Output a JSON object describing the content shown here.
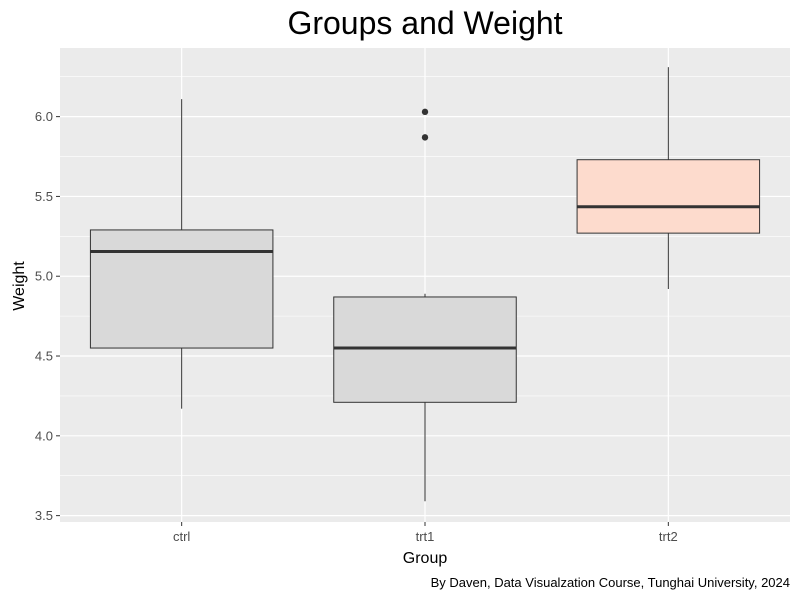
{
  "chart_data": {
    "type": "box",
    "title": "Groups and Weight",
    "xlabel": "Group",
    "ylabel": "Weight",
    "caption": "By Daven, Data Visualzation Course, Tunghai University, 2024",
    "categories": [
      "ctrl",
      "trt1",
      "trt2"
    ],
    "ylim": [
      3.46,
      6.43
    ],
    "yticks": [
      3.5,
      4.0,
      4.5,
      5.0,
      5.5,
      6.0
    ],
    "ytick_labels": [
      "3.5",
      "4.0",
      "4.5",
      "5.0",
      "5.5",
      "6.0"
    ],
    "grid": true,
    "legend": "none",
    "boxes": [
      {
        "category": "ctrl",
        "whisker_low": 4.17,
        "q1": 4.55,
        "median": 5.155,
        "q3": 5.29,
        "whisker_high": 6.11,
        "outliers": [],
        "fill": "#d9d9d9"
      },
      {
        "category": "trt1",
        "whisker_low": 3.59,
        "q1": 4.21,
        "median": 4.55,
        "q3": 4.87,
        "whisker_high": 4.89,
        "outliers": [
          5.87,
          6.03
        ],
        "fill": "#d9d9d9"
      },
      {
        "category": "trt2",
        "whisker_low": 4.92,
        "q1": 5.27,
        "median": 5.435,
        "q3": 5.73,
        "whisker_high": 6.31,
        "outliers": [],
        "fill": "#fddbcd"
      }
    ],
    "colors": {
      "panel_bg": "#ebebeb",
      "grid_major": "#ffffff",
      "box_border": "#333333",
      "median_line": "#333333",
      "outlier": "#333333"
    }
  }
}
